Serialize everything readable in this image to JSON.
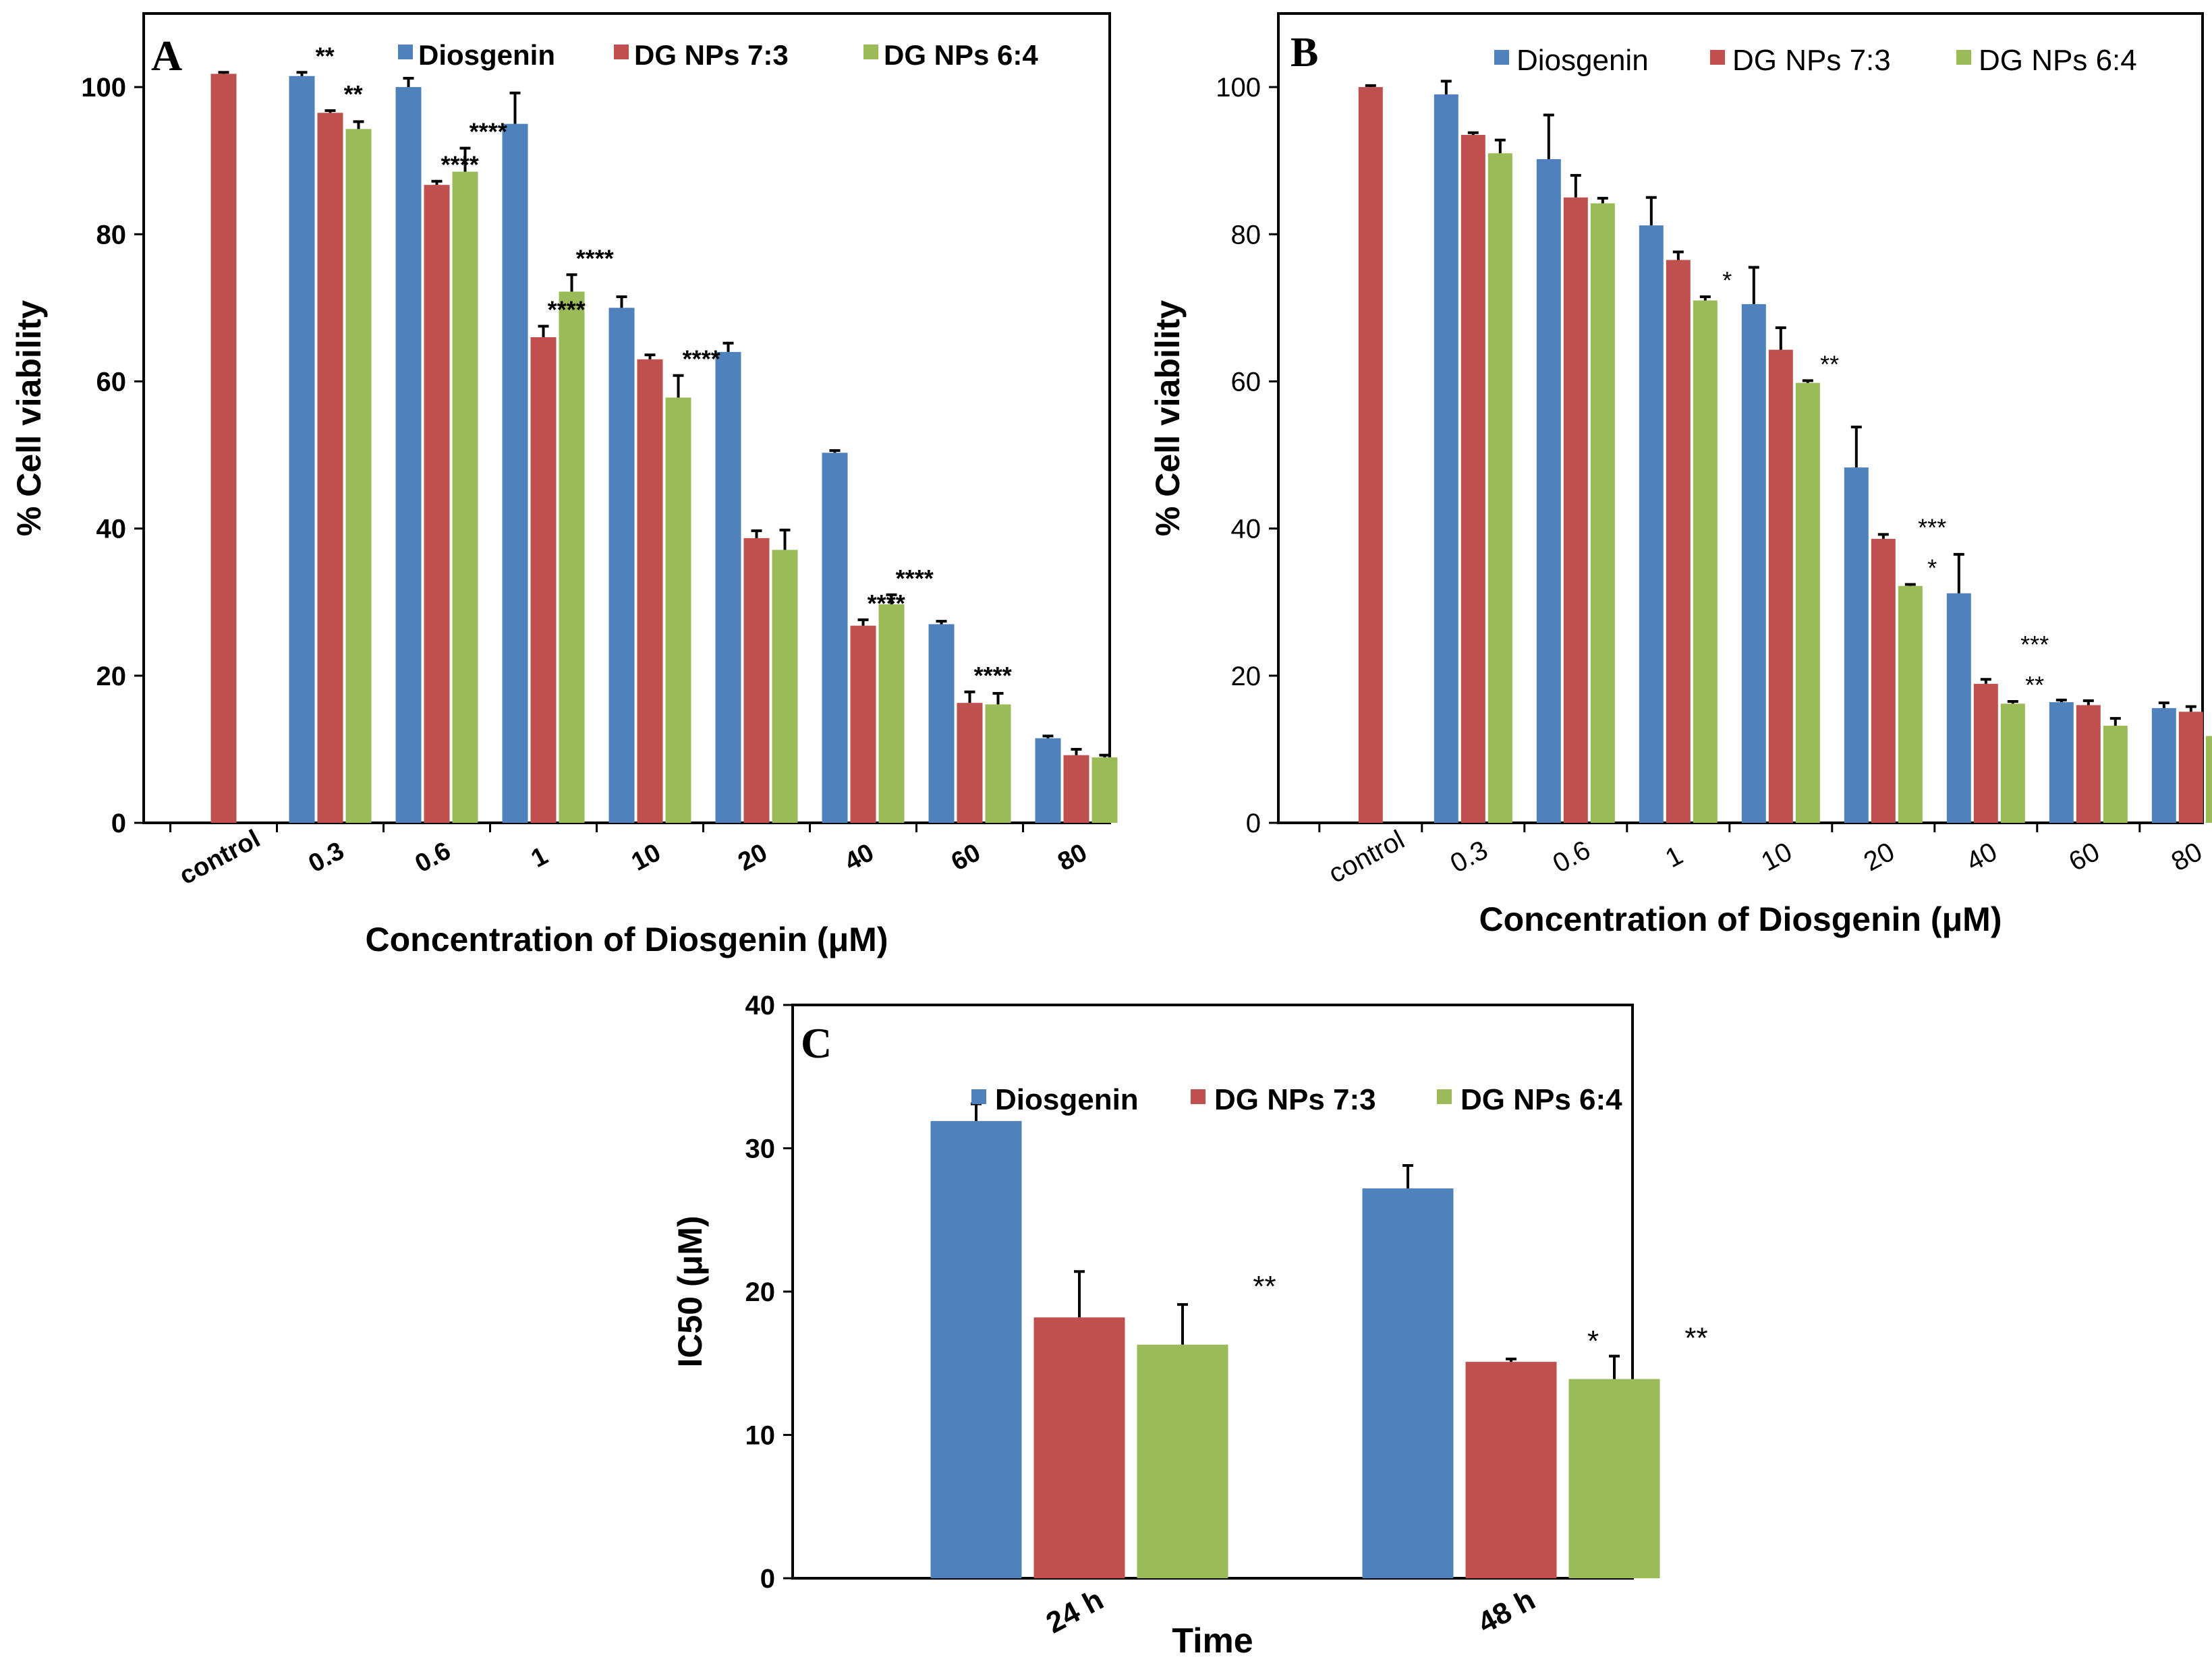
{
  "figure": {
    "colors": {
      "Diosgenin": "#4f81bd",
      "DG NPs 7:3": "#c0504d",
      "DG NPs 6:4": "#9bbb59"
    }
  },
  "chart_data": [
    {
      "panel": "A",
      "type": "bar",
      "title": "",
      "xlabel": "Concentration of Diosgenin (μM)",
      "ylabel": "% Cell viability",
      "ylim": [
        0,
        110
      ],
      "yticks": [
        0,
        20,
        40,
        60,
        80,
        100
      ],
      "categories": [
        "control",
        "0.3",
        "0.6",
        "1",
        "10",
        "20",
        "40",
        "60",
        "80"
      ],
      "legend": [
        "Diosgenin",
        "DG NPs 7:3",
        "DG NPs 6:4"
      ],
      "legend_position": "top",
      "series": [
        {
          "name": "Diosgenin",
          "values": [
            null,
            101.5,
            100,
            95,
            70,
            64,
            50.3,
            27,
            11.5
          ],
          "errors": [
            null,
            0.5,
            1.2,
            4.2,
            1.5,
            1.2,
            0.3,
            0.4,
            0.3
          ]
        },
        {
          "name": "DG NPs 7:3",
          "values": [
            101.8,
            96.5,
            86.7,
            66,
            63,
            38.7,
            26.8,
            16.3,
            9.2
          ],
          "errors": [
            0.2,
            0.3,
            0.5,
            1.5,
            0.6,
            1,
            0.8,
            1.5,
            0.8
          ]
        },
        {
          "name": "DG NPs 6:4",
          "values": [
            null,
            94.3,
            88.5,
            72.2,
            57.8,
            37.1,
            29.7,
            16.1,
            8.9
          ],
          "errors": [
            null,
            1,
            3.2,
            2.3,
            3,
            2.7,
            1.3,
            1.5,
            0.3
          ]
        }
      ],
      "annotations": [
        {
          "text": "**",
          "category": "0.3",
          "series": "Diosgenin"
        },
        {
          "text": "**",
          "category": "0.3",
          "series": "DG NPs 7:3"
        },
        {
          "text": "****",
          "category": "0.6",
          "series": "DG NPs 7:3"
        },
        {
          "text": "****",
          "category": "0.6",
          "series": "DG NPs 6:4"
        },
        {
          "text": "****",
          "category": "1",
          "series": "DG NPs 7:3"
        },
        {
          "text": "****",
          "category": "1",
          "series": "DG NPs 6:4"
        },
        {
          "text": "****",
          "category": "10",
          "series": "DG NPs 6:4"
        },
        {
          "text": "****",
          "category": "40",
          "series": "DG NPs 7:3"
        },
        {
          "text": "****",
          "category": "40",
          "series": "DG NPs 6:4"
        },
        {
          "text": "****",
          "category": "60",
          "series": "DG NPs 7:3"
        }
      ]
    },
    {
      "panel": "B",
      "type": "bar",
      "title": "",
      "xlabel": "Concentration of Diosgenin (μM)",
      "ylabel": "% Cell viability",
      "ylim": [
        0,
        110
      ],
      "yticks": [
        0,
        20,
        40,
        60,
        80,
        100
      ],
      "categories": [
        "control",
        "0.3",
        "0.6",
        "1",
        "10",
        "20",
        "40",
        "60",
        "80"
      ],
      "legend": [
        "Diosgenin",
        "DG NPs 7:3",
        "DG NPs 6:4"
      ],
      "legend_position": "top",
      "series": [
        {
          "name": "Diosgenin",
          "values": [
            null,
            99,
            90.2,
            81.2,
            70.5,
            48.3,
            31.2,
            16.4,
            15.6
          ],
          "errors": [
            null,
            1.8,
            6,
            3.8,
            5,
            5.5,
            5.3,
            0.3,
            0.7
          ]
        },
        {
          "name": "DG NPs 7:3",
          "values": [
            100,
            93.5,
            85,
            76.5,
            64.3,
            38.6,
            18.9,
            16,
            15.1
          ],
          "errors": [
            0.2,
            0.3,
            3,
            1.1,
            3,
            0.6,
            0.6,
            0.6,
            0.7
          ]
        },
        {
          "name": "DG NPs 6:4",
          "values": [
            null,
            91,
            84.2,
            71,
            59.8,
            32.2,
            16.2,
            13.2,
            11.8
          ],
          "errors": [
            null,
            1.8,
            0.7,
            0.5,
            0.3,
            0.2,
            0.3,
            1,
            0.3
          ]
        }
      ],
      "annotations": [
        {
          "text": "*",
          "category": "1",
          "series": "DG NPs 6:4"
        },
        {
          "text": "**",
          "category": "10",
          "series": "DG NPs 6:4"
        },
        {
          "text": "*",
          "category": "20",
          "series": "DG NPs 6:4"
        },
        {
          "text": "***",
          "category": "20",
          "series": "DG NPs 6:4"
        },
        {
          "text": "**",
          "category": "40",
          "series": "DG NPs 6:4"
        },
        {
          "text": "***",
          "category": "40",
          "series": "DG NPs 6:4"
        }
      ]
    },
    {
      "panel": "C",
      "type": "bar",
      "title": "",
      "xlabel": "Time",
      "ylabel": "IC50 (μM)",
      "ylim": [
        0,
        40
      ],
      "yticks": [
        0,
        10,
        20,
        30,
        40
      ],
      "categories": [
        "24 h",
        "48 h"
      ],
      "legend": [
        "Diosgenin",
        "DG NPs 7:3",
        "DG NPs 6:4"
      ],
      "legend_position": "top-right",
      "series": [
        {
          "name": "Diosgenin",
          "values": [
            31.9,
            27.2
          ],
          "errors": [
            1.2,
            1.6
          ]
        },
        {
          "name": "DG NPs 7:3",
          "values": [
            18.2,
            15.1
          ],
          "errors": [
            3.2,
            0.2
          ]
        },
        {
          "name": "DG NPs 6:4",
          "values": [
            16.3,
            13.9
          ],
          "errors": [
            2.8,
            1.6
          ]
        }
      ],
      "annotations": [
        {
          "text": "**",
          "category": "24 h",
          "series": "DG NPs 6:4"
        },
        {
          "text": "*",
          "category": "48 h",
          "series": "DG NPs 7:3"
        },
        {
          "text": "**",
          "category": "48 h",
          "series": "DG NPs 6:4"
        }
      ]
    }
  ]
}
